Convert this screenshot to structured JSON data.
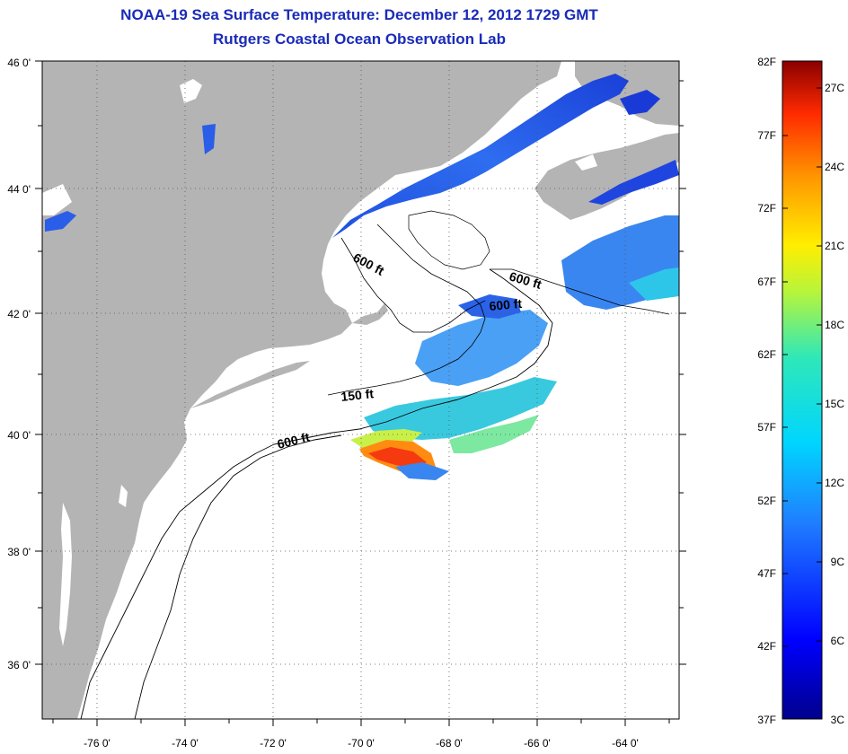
{
  "title": {
    "line1": "NOAA-19 Sea Surface Temperature:  December 12, 2012 1729 GMT",
    "line2": "Rutgers Coastal Ocean Observation Lab"
  },
  "axes": {
    "lat_labels": [
      "46 0'",
      "44 0'",
      "42 0'",
      "40 0'",
      "38 0'",
      "36 0'"
    ],
    "lon_labels": [
      "-76 0'",
      "-74 0'",
      "-72 0'",
      "-70 0'",
      "-68 0'",
      "-66 0'",
      "-64 0'"
    ],
    "lat_range": [
      35,
      46
    ],
    "lon_range": [
      -77,
      -63
    ],
    "grid": "dotted"
  },
  "contours": [
    {
      "label": "600 ft"
    },
    {
      "label": "600 ft"
    },
    {
      "label": "600 ft"
    },
    {
      "label": "150 ft"
    },
    {
      "label": "600 ft"
    }
  ],
  "colorbar": {
    "fahrenheit_labels": [
      "82F",
      "77F",
      "72F",
      "67F",
      "62F",
      "57F",
      "52F",
      "47F",
      "42F",
      "37F"
    ],
    "celsius_labels": [
      "27C",
      "24C",
      "21C",
      "18C",
      "15C",
      "12C",
      "9C",
      "6C",
      "3C"
    ]
  },
  "colors": {
    "land": "#b4b4b4",
    "no_data": "#ffffff",
    "title": "#1a2bb8"
  }
}
